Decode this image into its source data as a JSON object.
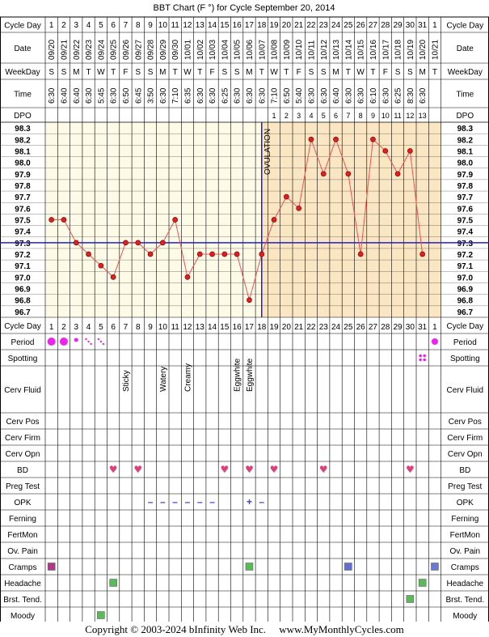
{
  "title": "BBT Chart (F °) for Cycle September 20, 2014",
  "row_labels": {
    "cycle_day": "Cycle Day",
    "date": "Date",
    "weekday": "WeekDay",
    "time": "Time",
    "dpo": "DPO",
    "period": "Period",
    "spotting": "Spotting",
    "cerv_fluid": "Cerv Fluid",
    "cerv_pos": "Cerv Pos",
    "cerv_firm": "Cerv Firm",
    "cerv_opn": "Cerv Opn",
    "bd": "BD",
    "preg_test": "Preg Test",
    "opk": "OPK",
    "ferning": "Ferning",
    "fertmon": "FertMon",
    "ov_pain": "Ov. Pain",
    "cramps": "Cramps",
    "headache": "Headache",
    "brst_tend": "Brst. Tend.",
    "moody": "Moody"
  },
  "ovulation_label": "OVULATION",
  "footer": {
    "copyright": "Copyright © 2003-2024 bInfinity Web Inc.",
    "site": "www.MyMonthlyCycles.com"
  },
  "colors": {
    "pre_ovulation_bg": "#fdfbe8",
    "post_ovulation_bg": "#fbe6c4",
    "line": "#f05050",
    "point": "#e02020",
    "coverline": "#2020c0",
    "period": "#ee22ee",
    "bd_heart": "#e0407a",
    "cramps_early": "#b03a8a",
    "cramps": "#5bb85b",
    "cramps_mid": "#6070cc",
    "cramps_last": "#6a7ad0",
    "headache": "#5bb85b",
    "brst_tend": "#5bb85b",
    "moody": "#5bb85b",
    "opk": "#4040cc"
  },
  "chart_data": {
    "type": "line",
    "title": "BBT Chart (F °) for Cycle September 20, 2014",
    "cycle_days": [
      "1",
      "2",
      "3",
      "4",
      "5",
      "6",
      "7",
      "8",
      "9",
      "10",
      "11",
      "12",
      "13",
      "14",
      "15",
      "16",
      "17",
      "18",
      "19",
      "20",
      "21",
      "22",
      "23",
      "24",
      "25",
      "26",
      "27",
      "28",
      "29",
      "30",
      "31",
      "1"
    ],
    "dates": [
      "09/20",
      "09/21",
      "09/22",
      "09/23",
      "09/24",
      "09/25",
      "09/26",
      "09/27",
      "09/28",
      "09/29",
      "09/30",
      "10/01",
      "10/02",
      "10/03",
      "10/04",
      "10/05",
      "10/06",
      "10/07",
      "10/08",
      "10/09",
      "10/10",
      "10/11",
      "10/12",
      "10/13",
      "10/14",
      "10/15",
      "10/16",
      "10/17",
      "10/18",
      "10/19",
      "10/20",
      "10/21"
    ],
    "weekdays": [
      "S",
      "S",
      "M",
      "T",
      "W",
      "T",
      "F",
      "S",
      "S",
      "M",
      "T",
      "W",
      "T",
      "F",
      "S",
      "S",
      "M",
      "T",
      "W",
      "T",
      "F",
      "S",
      "S",
      "M",
      "T",
      "W",
      "T",
      "F",
      "S",
      "S",
      "M",
      "T"
    ],
    "times": [
      "6:30",
      "6:40",
      "6:40",
      "6:30",
      "5:45",
      "6:30",
      "6:50",
      "6:45",
      "3:50",
      "6:30",
      "7:10",
      "6:35",
      "6:30",
      "6:30",
      "6:25",
      "6:30",
      "6:30",
      "6:30",
      "7:10",
      "6:50",
      "5:40",
      "6:30",
      "6:30",
      "6:40",
      "6:30",
      "6:30",
      "6:10",
      "6:30",
      "6:25",
      "8:30",
      "6:30",
      ""
    ],
    "dpo": [
      "",
      "",
      "",
      "",
      "",
      "",
      "",
      "",
      "",
      "",
      "",
      "",
      "",
      "",
      "",
      "",
      "",
      "",
      "1",
      "2",
      "3",
      "4",
      "5",
      "6",
      "7",
      "8",
      "9",
      "10",
      "11",
      "12",
      "13",
      ""
    ],
    "temperatures": [
      97.5,
      97.5,
      97.3,
      97.2,
      97.1,
      97.0,
      97.3,
      97.3,
      97.2,
      97.3,
      97.5,
      97.0,
      97.2,
      97.2,
      97.2,
      97.2,
      96.8,
      97.2,
      97.5,
      97.7,
      97.6,
      98.2,
      97.9,
      98.2,
      97.9,
      97.2,
      98.2,
      98.1,
      97.9,
      98.1,
      97.2,
      null
    ],
    "y_ticks": [
      "98.3",
      "98.2",
      "98.1",
      "98.0",
      "97.9",
      "97.8",
      "97.7",
      "97.6",
      "97.5",
      "97.4",
      "97.3",
      "97.2",
      "97.1",
      "97.0",
      "96.9",
      "96.8",
      "96.7"
    ],
    "ylim": [
      96.7,
      98.3
    ],
    "coverline": 97.3,
    "ovulation_after_day_index": 17,
    "grid": true
  },
  "symptoms": {
    "period": [
      {
        "day_index": 0,
        "kind": "heavy"
      },
      {
        "day_index": 1,
        "kind": "heavy"
      },
      {
        "day_index": 2,
        "kind": "light"
      },
      {
        "day_index": 3,
        "kind": "spotting"
      },
      {
        "day_index": 4,
        "kind": "spotting"
      },
      {
        "day_index": 31,
        "kind": "medium"
      }
    ],
    "spotting": [
      {
        "day_index": 30
      }
    ],
    "cerv_fluid": [
      {
        "day_index": 6,
        "text": "Sticky"
      },
      {
        "day_index": 9,
        "text": "Watery"
      },
      {
        "day_index": 11,
        "text": "Creamy"
      },
      {
        "day_index": 15,
        "text": "Eggwhite"
      },
      {
        "day_index": 16,
        "text": "Eggwhite"
      }
    ],
    "bd": [
      5,
      7,
      14,
      16,
      18,
      22,
      29
    ],
    "opk": [
      {
        "day_index": 8,
        "text": "–"
      },
      {
        "day_index": 9,
        "text": "–"
      },
      {
        "day_index": 10,
        "text": "–"
      },
      {
        "day_index": 11,
        "text": "–"
      },
      {
        "day_index": 12,
        "text": "–"
      },
      {
        "day_index": 13,
        "text": "–"
      },
      {
        "day_index": 16,
        "text": "+"
      },
      {
        "day_index": 17,
        "text": "–"
      }
    ],
    "cramps": [
      {
        "day_index": 0,
        "color": "cramps_early"
      },
      {
        "day_index": 16,
        "color": "cramps"
      },
      {
        "day_index": 24,
        "color": "cramps_mid"
      },
      {
        "day_index": 31,
        "color": "cramps_last"
      }
    ],
    "headache": [
      5,
      30
    ],
    "brst_tend": [
      29
    ],
    "moody": [
      4
    ]
  }
}
